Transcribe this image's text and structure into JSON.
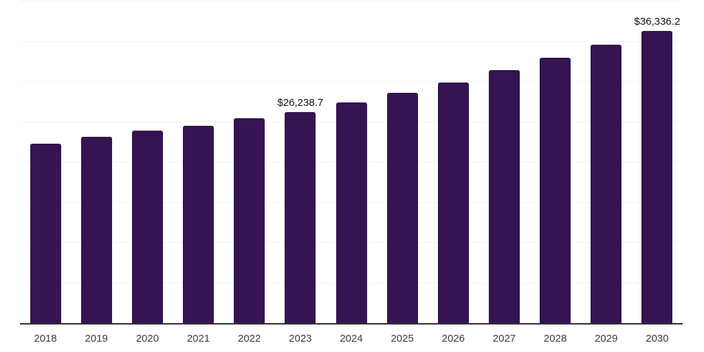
{
  "chart_data": {
    "type": "bar",
    "categories": [
      "2018",
      "2019",
      "2020",
      "2021",
      "2022",
      "2023",
      "2024",
      "2025",
      "2026",
      "2027",
      "2028",
      "2029",
      "2030"
    ],
    "values": [
      22300,
      23200,
      23900,
      24500,
      25450,
      26238.7,
      27400,
      28600,
      29900,
      31450,
      33000,
      34600,
      36336.2
    ],
    "labeled_points": [
      {
        "category": "2023",
        "label": "$26,238.7"
      },
      {
        "category": "2030",
        "label": "$36,336.2"
      }
    ],
    "title": "",
    "xlabel": "",
    "ylabel": "",
    "ylim": [
      0,
      40000
    ],
    "gridline_step": 5000,
    "grid": "horizontal-only, no y-axis tick labels",
    "legend_position": "none",
    "colors": {
      "bar": "#341451",
      "gridline": "#f3f2f6",
      "axis_line": "#2f2f2f",
      "tick_label": "#3c3c3c",
      "data_label": "#111111",
      "background": "#ffffff"
    }
  }
}
